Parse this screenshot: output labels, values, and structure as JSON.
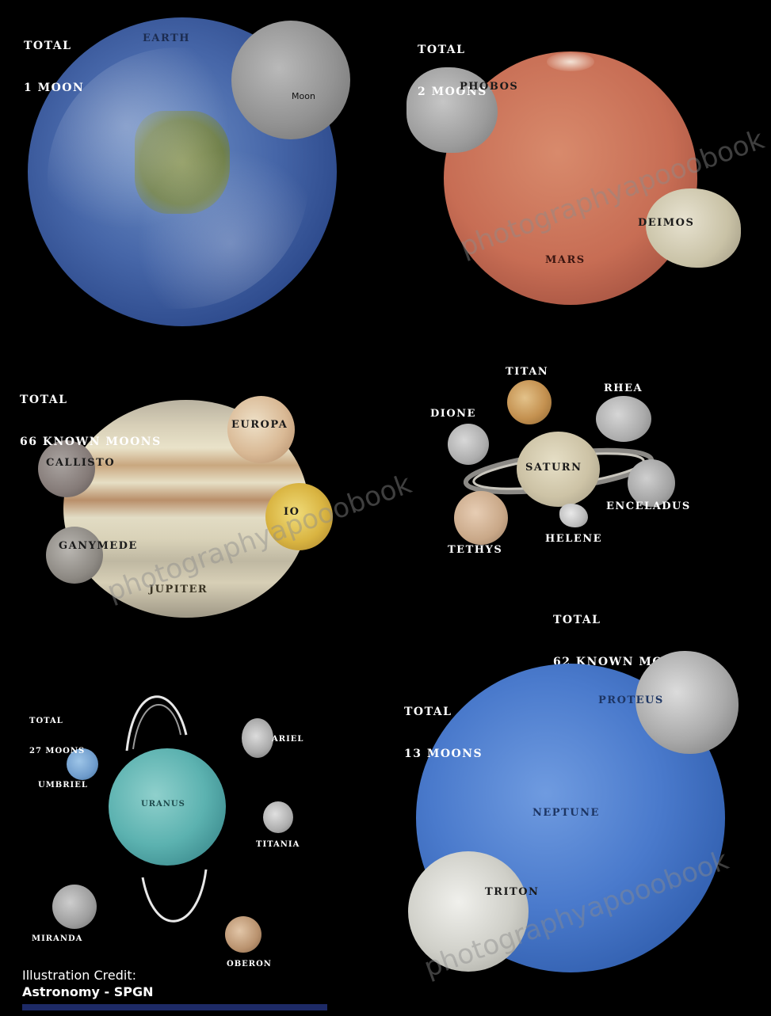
{
  "earth_panel": {
    "total_line1": "TOTAL",
    "total_line2": "1 MOON",
    "planet": "EARTH",
    "moon": "Moon"
  },
  "mars_panel": {
    "total_line1": "TOTAL",
    "total_line2": "2 MOONS",
    "planet": "MARS",
    "moons": [
      "PHOBOS",
      "DEIMOS"
    ]
  },
  "jupiter_panel": {
    "total_line1": "TOTAL",
    "total_line2": "66 KNOWN MOONS",
    "planet": "JUPITER",
    "moons": [
      "EUROPA",
      "CALLISTO",
      "IO",
      "GANYMEDE"
    ]
  },
  "saturn_panel": {
    "total_line1": "TOTAL",
    "total_line2": "62 KNOWN MOONS",
    "planet": "SATURN",
    "moons": [
      "TITAN",
      "RHEA",
      "DIONE",
      "ENCELADUS",
      "TETHYS",
      "HELENE"
    ]
  },
  "uranus_panel": {
    "total_line1": "TOTAL",
    "total_line2": "27 MOONS",
    "planet": "URANUS",
    "moons": [
      "ARIEL",
      "UMBRIEL",
      "TITANIA",
      "MIRANDA",
      "OBERON"
    ]
  },
  "neptune_panel": {
    "total_line1": "TOTAL",
    "total_line2": "13 MOONS",
    "planet": "NEPTUNE",
    "moons": [
      "PROTEUS",
      "TRITON"
    ]
  },
  "credit": {
    "line1": "Illustration Credit:",
    "line2": "Astronomy - SPGN"
  },
  "watermark": "photographyapooobook",
  "colors": {
    "background": "#000000",
    "earth": "#3f5fa8",
    "mars": "#c9735a",
    "jupiter": "#d8cba8",
    "saturn": "#d9cfb5",
    "uranus": "#5fb3b3",
    "neptune": "#3d6fbf"
  }
}
